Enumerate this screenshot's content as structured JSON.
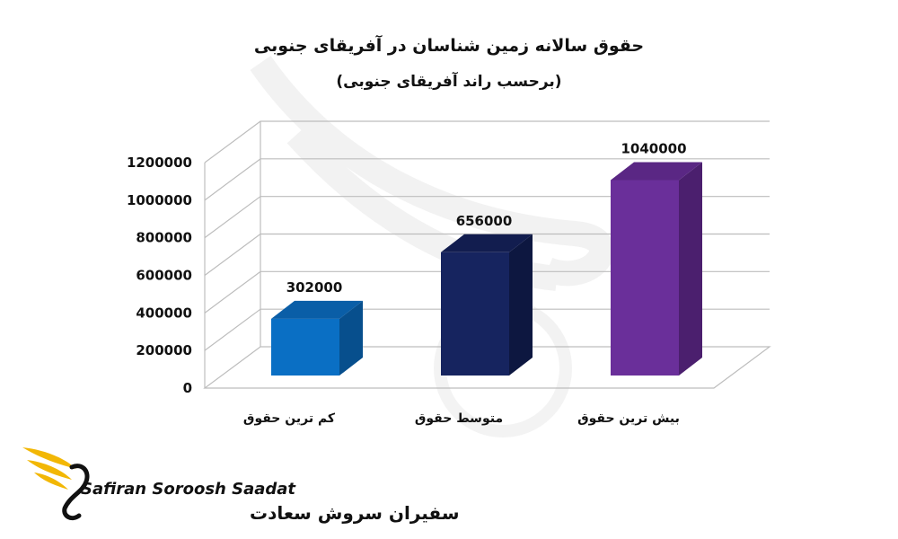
{
  "chart_data": {
    "type": "bar",
    "title": "حقوق سالانه زمین شناسان در آفریقای جنوبی",
    "subtitle": "(برحسب راند آفریقای جنوبی)",
    "categories": [
      "کم ترین حقوق",
      "متوسط حقوق",
      "بیش ترین حقوق"
    ],
    "values": [
      302000,
      656000,
      1040000
    ],
    "value_labels": [
      "302000",
      "656000",
      "1040000"
    ],
    "yticks": [
      "0",
      "200000",
      "400000",
      "600000",
      "800000",
      "1000000",
      "1200000"
    ],
    "ylim": [
      0,
      1200000
    ],
    "grid": true,
    "style": "3d",
    "bar_colors": [
      {
        "front": "#0a6fc4",
        "side": "#074f8d",
        "top": "#0a5ea7"
      },
      {
        "front": "#16245f",
        "side": "#0d1740",
        "top": "#121d4f"
      },
      {
        "front": "#6a2f9a",
        "side": "#4b1f6e",
        "top": "#5a2784"
      }
    ]
  },
  "logo": {
    "latin": "Safiran Soroosh Saadat",
    "persian": "سفیران سروش سعادت",
    "accent": "#f2b705"
  }
}
